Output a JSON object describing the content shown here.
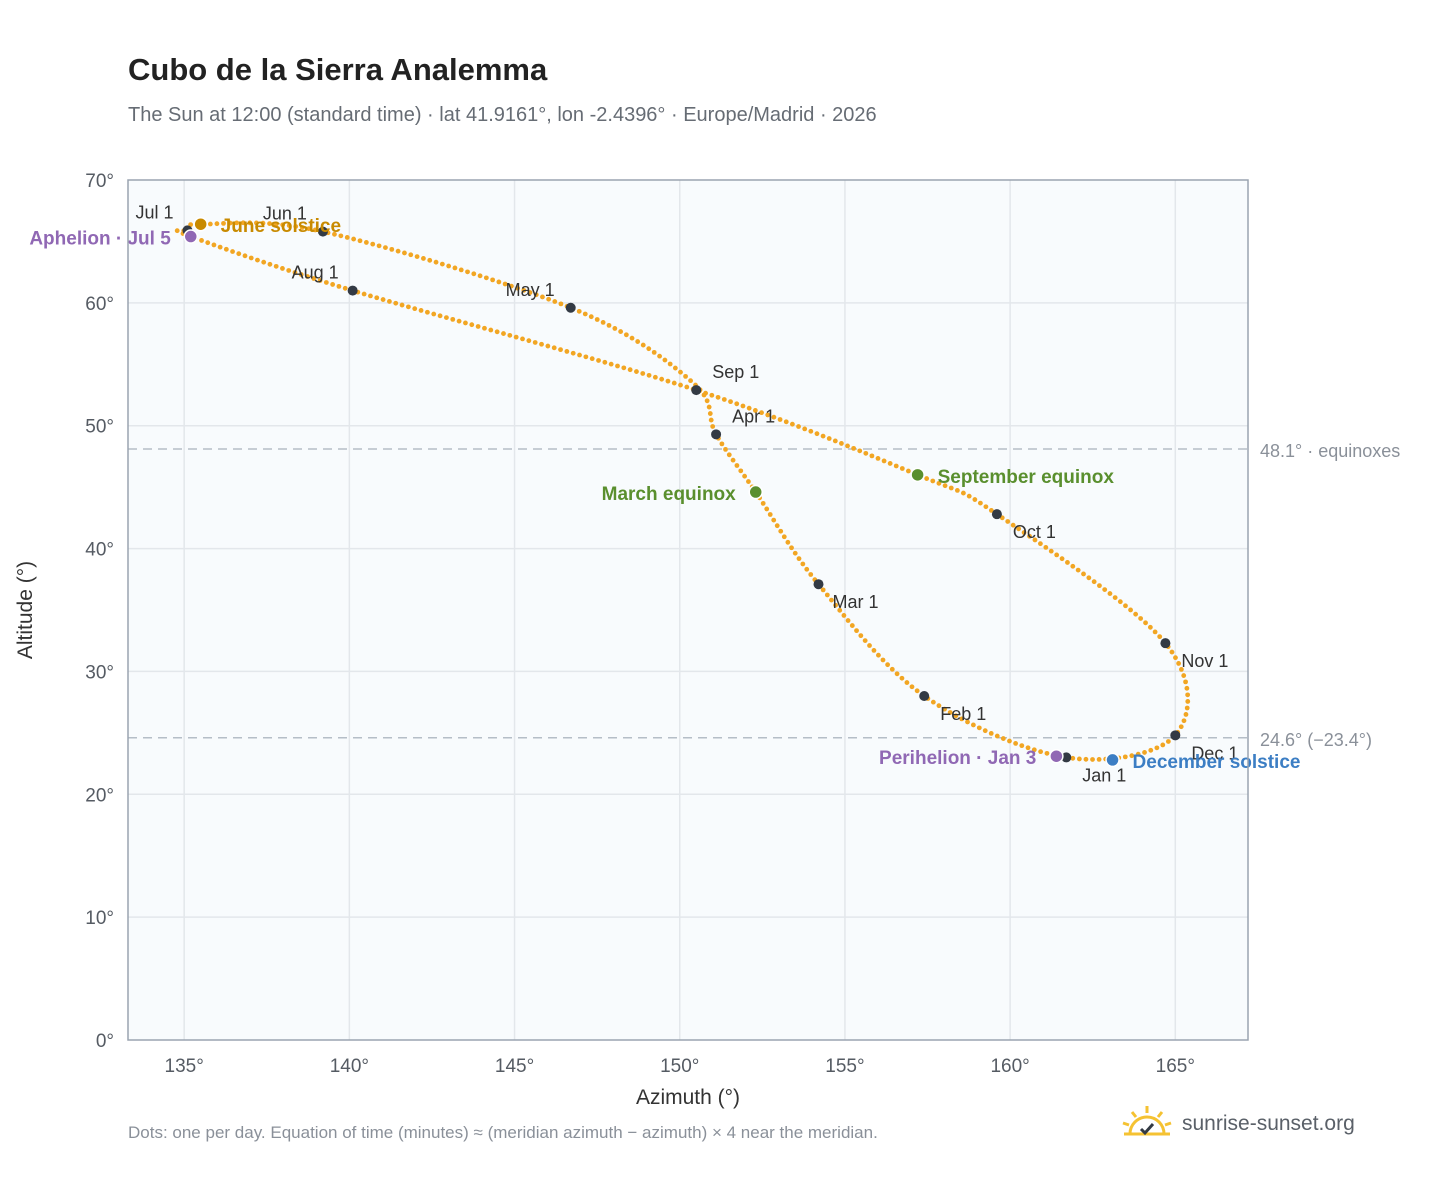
{
  "title": "Cubo de la Sierra Analemma",
  "subtitle": "The Sun at 12:00 (standard time) · lat 41.9161°, lon -2.4396° · Europe/Madrid · 2026",
  "footnote": "Dots: one per day. Equation of time (minutes) ≈ (meridian azimuth − azimuth) × 4 near the meridian.",
  "brand": {
    "name": "sunrise-sunset.org",
    "icon": "sun-checkmark-icon"
  },
  "colors": {
    "path": "#f2a623",
    "month_marker": "#333a44",
    "equinox": "#5a8f2e",
    "june_solstice": "#c88a00",
    "december_solstice": "#3c7ec4",
    "apsis": "#9068b4",
    "plot_bg": "#f8fbfd",
    "grid": "#e3e7eb",
    "ref_line": "#b5bec7"
  },
  "chart_data": {
    "type": "scatter",
    "title": "Cubo de la Sierra Analemma",
    "xlabel": "Azimuth (°)",
    "ylabel": "Altitude (°)",
    "xlim": [
      133.3,
      167.2
    ],
    "ylim": [
      0,
      70
    ],
    "x_ticks": [
      135,
      140,
      145,
      150,
      155,
      160,
      165
    ],
    "x_tick_labels": [
      "135°",
      "140°",
      "145°",
      "150°",
      "155°",
      "160°",
      "165°"
    ],
    "y_ticks": [
      0,
      10,
      20,
      30,
      40,
      50,
      60,
      70
    ],
    "y_tick_labels": [
      "0°",
      "10°",
      "20°",
      "30°",
      "40°",
      "50°",
      "60°",
      "70°"
    ],
    "grid": true,
    "path_points": [
      [
        161.7,
        23.0
      ],
      [
        165.0,
        24.8
      ],
      [
        164.7,
        32.3
      ],
      [
        159.6,
        42.8
      ],
      [
        157.2,
        46.0
      ],
      [
        150.5,
        52.9
      ],
      [
        140.1,
        61.0
      ],
      [
        135.2,
        65.4
      ],
      [
        135.1,
        65.9
      ],
      [
        135.5,
        66.4
      ],
      [
        139.2,
        65.8
      ],
      [
        146.7,
        59.6
      ],
      [
        150.4,
        53.5
      ],
      [
        151.1,
        49.3
      ],
      [
        152.3,
        44.6
      ],
      [
        154.2,
        37.1
      ],
      [
        157.4,
        28.0
      ],
      [
        161.7,
        23.0
      ]
    ],
    "month_markers": [
      {
        "label": "Jan 1",
        "x": 161.7,
        "y": 23.0
      },
      {
        "label": "Feb 1",
        "x": 157.4,
        "y": 28.0
      },
      {
        "label": "Mar 1",
        "x": 154.2,
        "y": 37.1
      },
      {
        "label": "Apr 1",
        "x": 151.1,
        "y": 49.3
      },
      {
        "label": "May 1",
        "x": 146.7,
        "y": 59.6
      },
      {
        "label": "Jun 1",
        "x": 139.2,
        "y": 65.8
      },
      {
        "label": "Jul 1",
        "x": 135.1,
        "y": 65.9
      },
      {
        "label": "Aug 1",
        "x": 140.1,
        "y": 61.0
      },
      {
        "label": "Sep 1",
        "x": 150.5,
        "y": 52.9
      },
      {
        "label": "Oct 1",
        "x": 159.6,
        "y": 42.8
      },
      {
        "label": "Nov 1",
        "x": 164.7,
        "y": 32.3
      },
      {
        "label": "Dec 1",
        "x": 165.0,
        "y": 24.8
      }
    ],
    "events": [
      {
        "label": "March equinox",
        "x": 152.3,
        "y": 44.6,
        "color": "#5a8f2e",
        "side": "left"
      },
      {
        "label": "September equinox",
        "x": 157.2,
        "y": 46.0,
        "color": "#5a8f2e",
        "side": "right"
      },
      {
        "label": "June solstice",
        "x": 135.5,
        "y": 66.4,
        "color": "#c88a00",
        "side": "right"
      },
      {
        "label": "December solstice",
        "x": 163.1,
        "y": 22.8,
        "color": "#3c7ec4",
        "side": "right"
      },
      {
        "label": "Aphelion · Jul 5",
        "x": 135.2,
        "y": 65.4,
        "color": "#9068b4",
        "side": "left"
      },
      {
        "label": "Perihelion · Jan 3",
        "x": 161.4,
        "y": 23.1,
        "color": "#9068b4",
        "side": "left"
      }
    ],
    "reference_lines": [
      {
        "y": 48.1,
        "label": "48.1° · equinoxes"
      },
      {
        "y": 24.6,
        "label": "24.6° (−23.4°)"
      }
    ]
  }
}
